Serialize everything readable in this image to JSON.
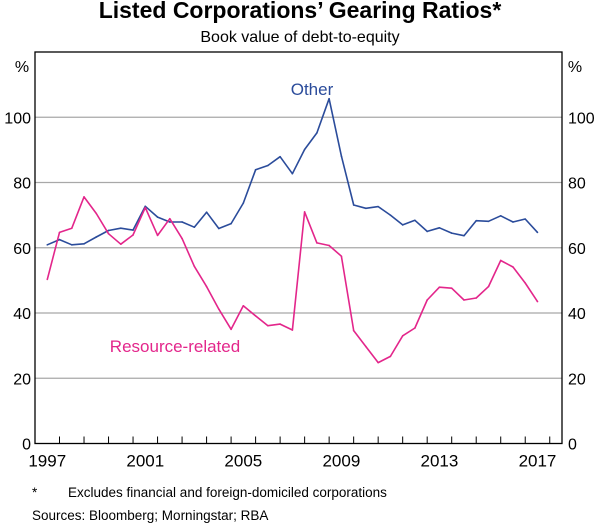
{
  "chart_data": {
    "type": "line",
    "title": "Listed Corporations’ Gearing Ratios*",
    "subtitle": "Book value of debt-to-equity",
    "ylabel_left": "%",
    "ylabel_right": "%",
    "ylim": [
      0,
      120
    ],
    "yticks": [
      0,
      20,
      40,
      60,
      80,
      100
    ],
    "xlim": [
      1996.5,
      2018.0
    ],
    "xtick_labels": [
      "1997",
      "2001",
      "2005",
      "2009",
      "2013",
      "2017"
    ],
    "grid": true,
    "x": [
      1997,
      1997.5,
      1998,
      1998.5,
      1999,
      1999.5,
      2000,
      2000.5,
      2001,
      2001.5,
      2002,
      2002.5,
      2003,
      2003.5,
      2004,
      2004.5,
      2005,
      2005.5,
      2006,
      2006.5,
      2007,
      2007.5,
      2008,
      2008.5,
      2009,
      2009.5,
      2010,
      2010.5,
      2011,
      2011.5,
      2012,
      2012.5,
      2013,
      2013.5,
      2014,
      2014.5,
      2015,
      2015.5,
      2016,
      2016.5,
      2017
    ],
    "series": [
      {
        "name": "Other",
        "color": "#2b4c9b",
        "values": [
          60.9,
          62.5,
          60.9,
          61.2,
          63.3,
          65.3,
          66.0,
          65.4,
          72.7,
          69.4,
          67.9,
          67.9,
          66.3,
          70.9,
          65.9,
          67.4,
          73.7,
          83.9,
          85.2,
          87.9,
          82.7,
          90.1,
          95.2,
          105.7,
          88.1,
          73.1,
          72.1,
          72.6,
          70.0,
          67.0,
          68.4,
          65.0,
          66.1,
          64.5,
          63.7,
          68.3,
          68.1,
          69.8,
          67.9,
          68.8,
          64.7
        ]
      },
      {
        "name": "Resource-related",
        "color": "#e3268b",
        "values": [
          50.3,
          64.7,
          66.0,
          75.6,
          70.5,
          64.3,
          61.1,
          63.9,
          72.3,
          63.8,
          68.9,
          62.8,
          54.3,
          48.1,
          41.2,
          35.0,
          42.2,
          39.1,
          36.1,
          36.6,
          34.8,
          71.0,
          61.5,
          60.7,
          57.4,
          34.6,
          29.7,
          24.8,
          26.7,
          33.0,
          35.4,
          44.0,
          47.9,
          47.6,
          44.0,
          44.6,
          48.1,
          56.1,
          54.1,
          49.2,
          43.5
        ]
      }
    ],
    "footnote_marker": "*",
    "footnote": "Excludes financial and foreign-domiciled corporations",
    "sources": "Sources: Bloomberg; Morningstar; RBA"
  }
}
